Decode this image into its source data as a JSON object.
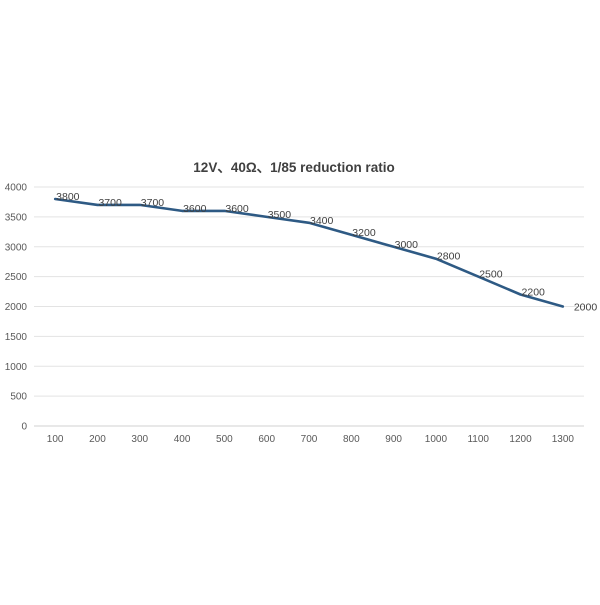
{
  "chart_data": {
    "type": "line",
    "title": "12V、40Ω、1/85 reduction ratio",
    "xlabel": "",
    "ylabel": "",
    "categories": [
      "100",
      "200",
      "300",
      "400",
      "500",
      "600",
      "700",
      "800",
      "900",
      "1000",
      "1100",
      "1200",
      "1300"
    ],
    "series": [
      {
        "values": [
          3800,
          3700,
          3700,
          3600,
          3600,
          3500,
          3400,
          3200,
          3000,
          2800,
          2500,
          2200,
          2000
        ]
      }
    ],
    "ylim": [
      0,
      4000
    ],
    "yticks": [
      0,
      500,
      1000,
      1500,
      2000,
      2500,
      3000,
      3500,
      4000
    ],
    "grid": true,
    "legend": "none",
    "line_color": "#2e5a84"
  }
}
